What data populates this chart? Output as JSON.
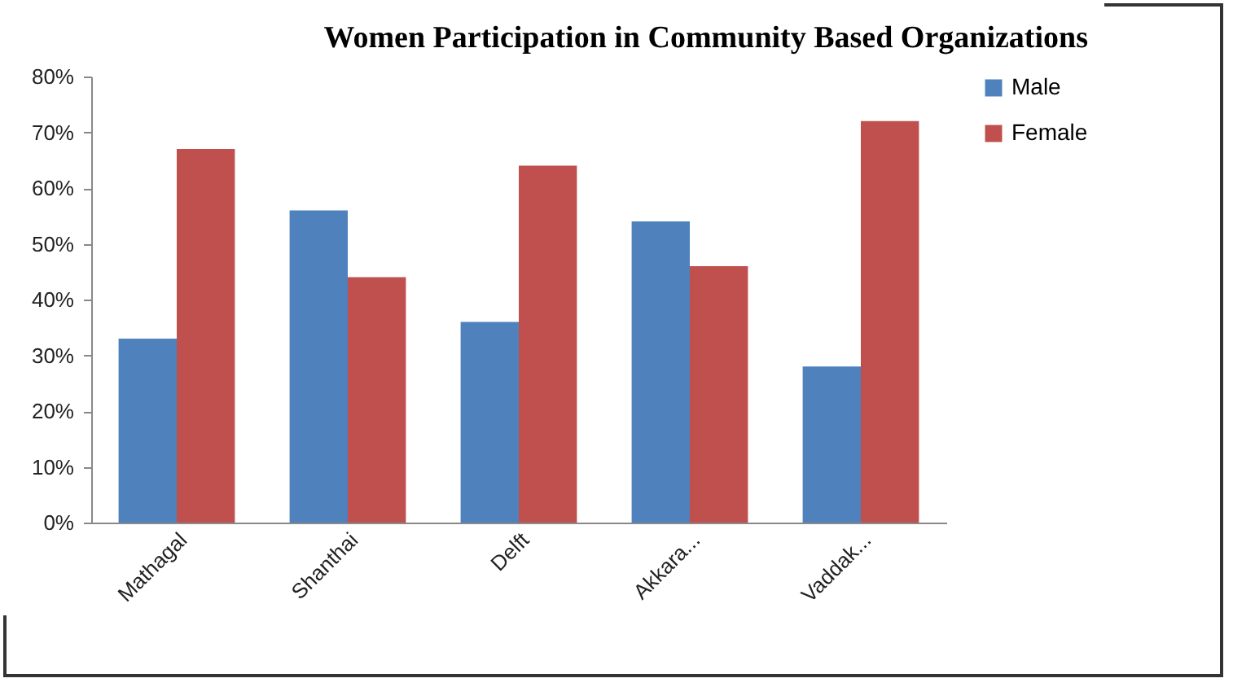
{
  "chart_data": {
    "type": "bar",
    "title": "Women Participation in Community Based Organizations",
    "categories": [
      "Mathagal",
      "Shanthai",
      "Delft",
      "Akkara...",
      "Vaddak..."
    ],
    "series": [
      {
        "name": "Male",
        "color": "#4f81bd",
        "values": [
          33,
          56,
          36,
          54,
          28
        ]
      },
      {
        "name": "Female",
        "color": "#c0504d",
        "values": [
          67,
          44,
          64,
          46,
          72
        ]
      }
    ],
    "ylim": [
      0,
      80
    ],
    "yticks": [
      {
        "value": 0,
        "label": "0%"
      },
      {
        "value": 10,
        "label": "10%"
      },
      {
        "value": 20,
        "label": "20%"
      },
      {
        "value": 30,
        "label": "30%"
      },
      {
        "value": 40,
        "label": "40%"
      },
      {
        "value": 50,
        "label": "50%"
      },
      {
        "value": 60,
        "label": "60%"
      },
      {
        "value": 70,
        "label": "70%"
      },
      {
        "value": 80,
        "label": "80%"
      }
    ],
    "grid": false,
    "legend": "right"
  }
}
